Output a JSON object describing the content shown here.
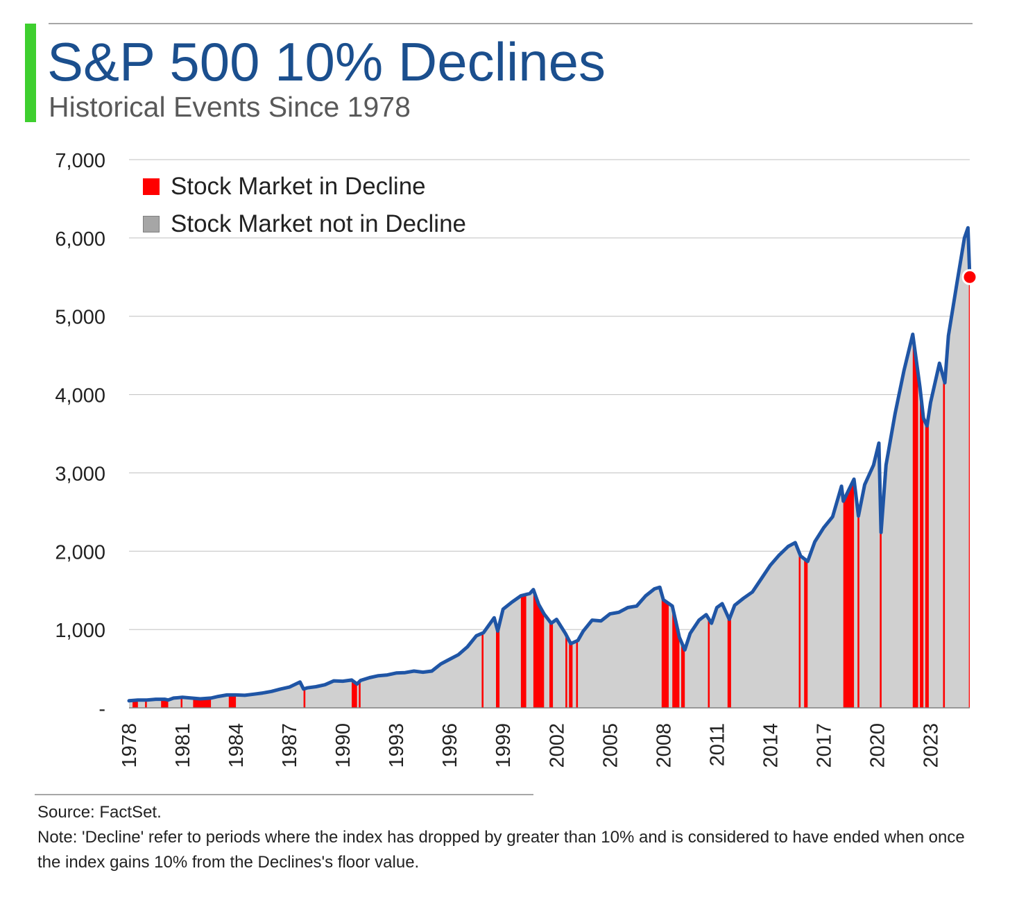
{
  "header": {
    "title": "S&P 500 10% Declines",
    "subtitle": "Historical Events Since 1978",
    "accent_color": "#3ecf2e"
  },
  "legend": {
    "placement": "top-left",
    "items": [
      {
        "label": "Stock Market in Decline",
        "color": "#ff0000"
      },
      {
        "label": "Stock Market not in Decline",
        "color": "#a6a6a6"
      }
    ]
  },
  "footer": {
    "source": "Source: FactSet.",
    "note": "Note: 'Decline' refer to periods where the index has dropped by greater than 10% and is considered to have ended when once the index gains 10% from the Declines's floor value."
  },
  "chart_data": {
    "type": "area",
    "title": "S&P 500 10% Declines",
    "subtitle": "Historical Events Since 1978",
    "xlabel": "",
    "ylabel": "",
    "xlim": [
      1978,
      2025.2
    ],
    "ylim": [
      0,
      7000
    ],
    "x_ticks": [
      "1978",
      "1981",
      "1984",
      "1987",
      "1990",
      "1993",
      "1996",
      "1999",
      "2002",
      "2005",
      "2008",
      "2011",
      "2014",
      "2017",
      "2020",
      "2023"
    ],
    "y_ticks": [
      "-",
      "1,000",
      "2,000",
      "3,000",
      "4,000",
      "5,000",
      "6,000",
      "7,000"
    ],
    "grid": "horizontal",
    "colors": {
      "line": "#1f55a5",
      "area": "#d0d0d0",
      "decline": "#ff0000",
      "marker": "#ff0000"
    },
    "series": [
      {
        "name": "",
        "x": [
          1978.0,
          1978.5,
          1979.0,
          1979.5,
          1980.0,
          1980.2,
          1980.5,
          1981.0,
          1981.5,
          1982.0,
          1982.6,
          1983.0,
          1983.5,
          1984.0,
          1984.5,
          1985.0,
          1985.5,
          1986.0,
          1986.5,
          1987.0,
          1987.6,
          1987.8,
          1988.0,
          1988.5,
          1989.0,
          1989.5,
          1990.0,
          1990.5,
          1990.8,
          1991.0,
          1991.5,
          1992.0,
          1992.5,
          1993.0,
          1993.5,
          1994.0,
          1994.5,
          1995.0,
          1995.5,
          1996.0,
          1996.5,
          1997.0,
          1997.5,
          1997.9,
          1998.5,
          1998.7,
          1999.0,
          1999.5,
          2000.0,
          2000.5,
          2000.7,
          2001.0,
          2001.3,
          2001.7,
          2002.0,
          2002.5,
          2002.8,
          2003.2,
          2003.5,
          2004.0,
          2004.5,
          2005.0,
          2005.5,
          2006.0,
          2006.5,
          2007.0,
          2007.5,
          2007.8,
          2008.0,
          2008.5,
          2008.9,
          2009.2,
          2009.5,
          2010.0,
          2010.4,
          2010.7,
          2011.0,
          2011.3,
          2011.7,
          2012.0,
          2012.5,
          2013.0,
          2013.5,
          2014.0,
          2014.5,
          2015.0,
          2015.4,
          2015.7,
          2016.1,
          2016.5,
          2017.0,
          2017.5,
          2018.0,
          2018.1,
          2018.7,
          2018.95,
          2019.3,
          2019.8,
          2020.1,
          2020.22,
          2020.5,
          2021.0,
          2021.5,
          2022.0,
          2022.4,
          2022.6,
          2022.8,
          2023.0,
          2023.5,
          2023.8,
          2024.0,
          2024.5,
          2024.9,
          2025.1,
          2025.2
        ],
        "values": [
          90,
          100,
          100,
          110,
          110,
          100,
          125,
          135,
          125,
          115,
          125,
          145,
          165,
          165,
          160,
          175,
          190,
          210,
          240,
          265,
          330,
          240,
          255,
          270,
          295,
          345,
          340,
          355,
          305,
          350,
          385,
          410,
          420,
          445,
          450,
          470,
          455,
          470,
          560,
          620,
          680,
          780,
          920,
          960,
          1150,
          980,
          1260,
          1350,
          1430,
          1460,
          1510,
          1320,
          1200,
          1080,
          1130,
          950,
          820,
          860,
          980,
          1120,
          1110,
          1200,
          1220,
          1280,
          1300,
          1430,
          1520,
          1540,
          1380,
          1300,
          900,
          740,
          950,
          1120,
          1190,
          1080,
          1280,
          1330,
          1130,
          1310,
          1400,
          1480,
          1650,
          1820,
          1950,
          2060,
          2110,
          1940,
          1870,
          2120,
          2300,
          2440,
          2830,
          2640,
          2920,
          2450,
          2850,
          3100,
          3380,
          2240,
          3100,
          3750,
          4300,
          4770,
          4100,
          3700,
          3600,
          3900,
          4400,
          4150,
          4750,
          5450,
          6000,
          6130,
          5500
        ]
      }
    ],
    "decline_periods": [
      [
        1978.2,
        1978.5
      ],
      [
        1978.9,
        1979.0
      ],
      [
        1979.8,
        1980.2
      ],
      [
        1980.9,
        1981.0
      ],
      [
        1981.6,
        1982.6
      ],
      [
        1983.6,
        1984.0
      ],
      [
        1987.8,
        1987.9
      ],
      [
        1990.5,
        1990.8
      ],
      [
        1990.9,
        1991.0
      ],
      [
        1997.8,
        1997.9
      ],
      [
        1998.6,
        1998.8
      ],
      [
        2000.0,
        2000.3
      ],
      [
        2000.7,
        2001.3
      ],
      [
        2001.6,
        2001.8
      ],
      [
        2002.5,
        2002.6
      ],
      [
        2002.7,
        2002.9
      ],
      [
        2003.1,
        2003.2
      ],
      [
        2007.9,
        2008.3
      ],
      [
        2008.5,
        2008.9
      ],
      [
        2009.0,
        2009.2
      ],
      [
        2010.5,
        2010.6
      ],
      [
        2011.6,
        2011.8
      ],
      [
        2015.6,
        2015.7
      ],
      [
        2015.9,
        2016.1
      ],
      [
        2018.1,
        2018.7
      ],
      [
        2018.9,
        2019.0
      ],
      [
        2020.15,
        2020.25
      ],
      [
        2022.0,
        2022.3
      ],
      [
        2022.4,
        2022.6
      ],
      [
        2022.7,
        2022.9
      ],
      [
        2023.7,
        2023.8
      ],
      [
        2025.15,
        2025.2
      ]
    ],
    "current_point": {
      "x": 2025.2,
      "y": 5500
    }
  }
}
